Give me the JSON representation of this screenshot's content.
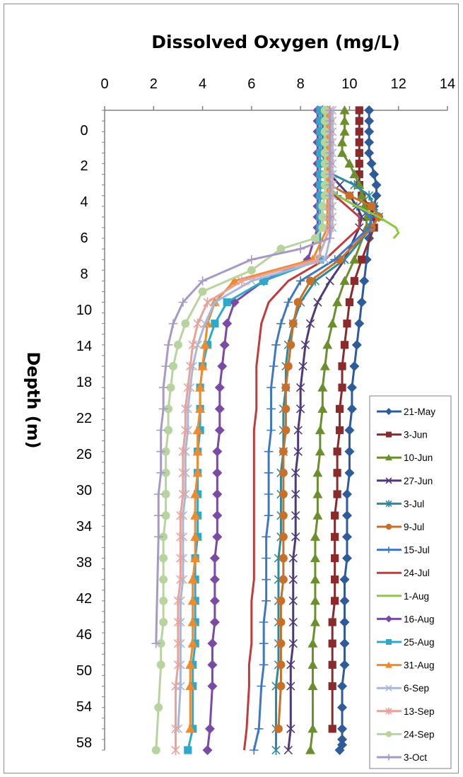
{
  "chart_data": {
    "type": "line",
    "title": "",
    "xlabel": "Dissolved Oxygen (mg/L)",
    "ylabel": "Depth (m)",
    "xlim": [
      0,
      14
    ],
    "ylim": [
      60,
      0
    ],
    "x_axis_position": "top",
    "x_ticks": [
      0,
      2,
      4,
      6,
      8,
      10,
      12,
      14
    ],
    "y_ticks": [
      0,
      2,
      4,
      6,
      8,
      10,
      14,
      18,
      22,
      26,
      30,
      34,
      38,
      42,
      46,
      50,
      54,
      58
    ],
    "grid": false,
    "legend_position": "bottom-right",
    "series": [
      {
        "name": "21-May",
        "color": "#2e5b9a",
        "marker": "diamond",
        "x": [
          10.8,
          10.8,
          10.8,
          10.8,
          10.8,
          10.9,
          11.0,
          11.1,
          11.1,
          11.0,
          10.9,
          10.8,
          10.7,
          10.6,
          10.5,
          10.4,
          10.3,
          10.2,
          10.1,
          10.1,
          10.0,
          10.0,
          10.0,
          9.9,
          9.9,
          9.9,
          9.9,
          9.8,
          9.8,
          9.8,
          9.8,
          9.8,
          9.7,
          9.7,
          9.7,
          9.7,
          9.7,
          9.6
        ],
        "depth": [
          0,
          1,
          2,
          3,
          4,
          5,
          6,
          7,
          8,
          9,
          10,
          12,
          14,
          16,
          18,
          20,
          22,
          24,
          26,
          28,
          30,
          32,
          34,
          36,
          38,
          40,
          42,
          44,
          46,
          48,
          50,
          52,
          54,
          56,
          58,
          59,
          59.5,
          60
        ]
      },
      {
        "name": "3-Jun",
        "color": "#8b2a2a",
        "marker": "square",
        "x": [
          10.4,
          10.4,
          10.4,
          10.4,
          10.4,
          10.4,
          10.4,
          10.4,
          10.5,
          10.8,
          11.0,
          11.0,
          10.5,
          10.2,
          10.0,
          9.9,
          9.8,
          9.7,
          9.7,
          9.6,
          9.6,
          9.5,
          9.5,
          9.5,
          9.4,
          9.4,
          9.4,
          9.4,
          9.4,
          9.3,
          9.3,
          9.3,
          9.3,
          9.3
        ],
        "depth": [
          0,
          1,
          2,
          3,
          4,
          5,
          6,
          7,
          8,
          9,
          10,
          11,
          14,
          16,
          18,
          20,
          22,
          24,
          26,
          28,
          30,
          32,
          34,
          36,
          38,
          40,
          42,
          44,
          46,
          48,
          50,
          52,
          54,
          58
        ]
      },
      {
        "name": "10-Jun",
        "color": "#6a8f2c",
        "marker": "triangle",
        "x": [
          9.8,
          9.8,
          9.8,
          9.7,
          9.7,
          10.0,
          10.2,
          10.4,
          10.5,
          10.6,
          10.7,
          10.7,
          10.2,
          9.8,
          9.5,
          9.3,
          9.1,
          9.0,
          8.9,
          8.9,
          8.8,
          8.8,
          8.7,
          8.7,
          8.7,
          8.6,
          8.6,
          8.6,
          8.6,
          8.6,
          8.5,
          8.5,
          8.5,
          8.5,
          8.4
        ],
        "depth": [
          0,
          1,
          2,
          3,
          4,
          5,
          6,
          7,
          8,
          9,
          10,
          11,
          14,
          16,
          18,
          20,
          22,
          24,
          26,
          28,
          30,
          32,
          34,
          36,
          38,
          40,
          42,
          44,
          46,
          48,
          50,
          52,
          54,
          58,
          60
        ]
      },
      {
        "name": "27-Jun",
        "color": "#4e3a78",
        "marker": "x",
        "x": [
          9.2,
          9.2,
          9.2,
          9.2,
          9.2,
          9.2,
          9.2,
          9.6,
          10.0,
          10.3,
          10.5,
          10.4,
          9.8,
          9.2,
          8.7,
          8.4,
          8.2,
          8.1,
          8.0,
          8.0,
          7.9,
          7.9,
          7.8,
          7.8,
          7.8,
          7.8,
          7.7,
          7.7,
          7.7,
          7.7,
          7.7,
          7.6,
          7.6,
          7.6,
          7.5
        ],
        "depth": [
          0,
          1,
          2,
          3,
          4,
          5,
          6,
          7,
          8,
          9,
          10,
          11,
          14,
          16,
          18,
          20,
          22,
          24,
          26,
          28,
          30,
          32,
          34,
          36,
          38,
          40,
          42,
          44,
          46,
          48,
          50,
          52,
          54,
          58,
          60
        ]
      },
      {
        "name": "3-Jul",
        "color": "#2d8a9e",
        "marker": "star",
        "x": [
          8.9,
          8.9,
          8.9,
          8.9,
          8.9,
          9.0,
          9.3,
          10.2,
          10.8,
          11.0,
          11.2,
          10.9,
          9.8,
          8.6,
          8.0,
          7.7,
          7.5,
          7.4,
          7.4,
          7.3,
          7.3,
          7.3,
          7.2,
          7.2,
          7.2,
          7.2,
          7.1,
          7.1,
          7.1,
          7.1,
          7.1,
          7.1,
          7.0,
          7.0,
          7.0
        ],
        "depth": [
          0,
          1,
          2,
          3,
          4,
          5,
          6,
          7,
          8,
          9,
          10,
          11,
          14,
          16,
          18,
          20,
          22,
          24,
          26,
          28,
          30,
          32,
          34,
          36,
          38,
          40,
          42,
          44,
          46,
          48,
          50,
          52,
          54,
          58,
          60
        ]
      },
      {
        "name": "9-Jul",
        "color": "#c8702a",
        "marker": "circle",
        "x": [
          9.1,
          9.1,
          9.1,
          9.1,
          9.1,
          9.1,
          9.1,
          9.2,
          10.0,
          10.9,
          11.2,
          10.9,
          9.6,
          8.4,
          7.9,
          7.7,
          7.6,
          7.5,
          7.4,
          7.4,
          7.4,
          7.3,
          7.3,
          7.3,
          7.3,
          7.3,
          7.3,
          7.3,
          7.2,
          7.2,
          7.2,
          7.2,
          7.2,
          7.1
        ],
        "depth": [
          0,
          1,
          2,
          3,
          4,
          5,
          6,
          7,
          8,
          9,
          10,
          11,
          14,
          16,
          18,
          20,
          22,
          24,
          26,
          28,
          30,
          32,
          34,
          36,
          38,
          40,
          42,
          44,
          46,
          48,
          50,
          52,
          54,
          58
        ]
      },
      {
        "name": "15-Jul",
        "color": "#3f78c2",
        "marker": "plus",
        "x": [
          9.0,
          9.0,
          9.0,
          9.0,
          9.0,
          9.0,
          9.0,
          9.1,
          9.5,
          10.3,
          10.9,
          10.8,
          9.4,
          8.0,
          7.5,
          7.2,
          7.0,
          6.9,
          6.8,
          6.8,
          6.8,
          6.7,
          6.7,
          6.7,
          6.7,
          6.6,
          6.6,
          6.6,
          6.6,
          6.5,
          6.5,
          6.5,
          6.4,
          6.3,
          6.1
        ],
        "depth": [
          0,
          1,
          2,
          3,
          4,
          5,
          6,
          7,
          8,
          9,
          10,
          11,
          14,
          16,
          18,
          20,
          22,
          24,
          26,
          28,
          30,
          32,
          34,
          36,
          38,
          40,
          42,
          44,
          46,
          48,
          50,
          52,
          54,
          58,
          60
        ]
      },
      {
        "name": "24-Jul",
        "color": "#c23b3b",
        "marker": "none",
        "x": [
          9.0,
          9.0,
          9.0,
          9.0,
          9.0,
          9.0,
          9.0,
          9.1,
          9.4,
          9.9,
          10.4,
          10.4,
          9.0,
          7.5,
          6.7,
          6.4,
          6.3,
          6.2,
          6.2,
          6.2,
          6.1,
          6.1,
          6.1,
          6.1,
          6.1,
          6.1,
          6.1,
          6.1,
          6.0,
          6.0,
          6.0,
          5.9,
          5.9,
          5.8,
          5.7
        ],
        "depth": [
          0,
          1,
          2,
          3,
          4,
          5,
          6,
          7,
          8,
          9,
          10,
          11,
          14,
          16,
          18,
          20,
          22,
          24,
          26,
          28,
          30,
          32,
          34,
          36,
          38,
          40,
          42,
          44,
          46,
          48,
          50,
          52,
          54,
          58,
          60
        ]
      },
      {
        "name": "1-Aug",
        "color": "#8ec83f",
        "marker": "none",
        "x": [
          9.0,
          9.0,
          9.0,
          9.0,
          9.0,
          9.0,
          9.0,
          9.1,
          9.5,
          10.3,
          11.2,
          11.9,
          12.0,
          11.8
        ],
        "depth": [
          0,
          1,
          2,
          3,
          4,
          5,
          6,
          7,
          8,
          9,
          10,
          11,
          11.5,
          12
        ]
      },
      {
        "name": "16-Aug",
        "color": "#7a4aa5",
        "marker": "diamond",
        "x": [
          8.7,
          8.7,
          8.7,
          8.7,
          8.7,
          8.7,
          8.7,
          8.7,
          8.7,
          8.7,
          8.7,
          8.7,
          8.3,
          6.5,
          5.3,
          5.0,
          4.9,
          4.8,
          4.7,
          4.7,
          4.7,
          4.6,
          4.6,
          4.6,
          4.6,
          4.6,
          4.5,
          4.5,
          4.5,
          4.5,
          4.4,
          4.4,
          4.4,
          4.3,
          4.2
        ],
        "depth": [
          0,
          1,
          2,
          3,
          4,
          5,
          6,
          7,
          8,
          9,
          10,
          11,
          14,
          16,
          18,
          20,
          22,
          24,
          26,
          28,
          30,
          32,
          34,
          36,
          38,
          40,
          42,
          44,
          46,
          48,
          50,
          52,
          54,
          58,
          60
        ]
      },
      {
        "name": "25-Aug",
        "color": "#30a8c8",
        "marker": "square",
        "x": [
          8.8,
          8.8,
          8.8,
          8.8,
          8.8,
          8.8,
          8.8,
          8.8,
          8.8,
          8.8,
          8.8,
          8.8,
          8.8,
          6.5,
          5.0,
          4.5,
          4.2,
          4.0,
          3.9,
          3.9,
          3.9,
          3.8,
          3.8,
          3.8,
          3.8,
          3.8,
          3.7,
          3.7,
          3.7,
          3.7,
          3.7,
          3.6,
          3.6,
          3.6,
          3.4
        ],
        "depth": [
          0,
          1,
          2,
          3,
          4,
          5,
          6,
          7,
          8,
          9,
          10,
          11,
          14,
          16,
          18,
          20,
          22,
          24,
          26,
          28,
          30,
          32,
          34,
          36,
          38,
          40,
          42,
          44,
          46,
          48,
          50,
          52,
          54,
          58,
          60
        ]
      },
      {
        "name": "31-Aug",
        "color": "#f08a2a",
        "marker": "triangle",
        "x": [
          9.1,
          9.1,
          9.1,
          9.1,
          9.1,
          9.1,
          9.1,
          9.1,
          9.1,
          9.1,
          9.1,
          9.1,
          8.5,
          5.3,
          4.5,
          4.2,
          4.1,
          4.0,
          3.9,
          3.9,
          3.8,
          3.8,
          3.8,
          3.7,
          3.7,
          3.7,
          3.7,
          3.6,
          3.6,
          3.6,
          3.6,
          3.5,
          3.5,
          3.5
        ],
        "depth": [
          0,
          1,
          2,
          3,
          4,
          5,
          6,
          7,
          8,
          9,
          10,
          11,
          14,
          16,
          18,
          20,
          22,
          24,
          26,
          28,
          30,
          32,
          34,
          36,
          38,
          40,
          42,
          44,
          46,
          48,
          50,
          52,
          54,
          58
        ]
      },
      {
        "name": "6-Sep",
        "color": "#a5b8da",
        "marker": "x",
        "x": [
          9.3,
          9.3,
          9.3,
          9.3,
          9.3,
          9.3,
          9.3,
          9.3,
          9.3,
          9.3,
          9.3,
          9.3,
          9.0,
          6.0,
          4.5,
          4.1,
          3.8,
          3.6,
          3.5,
          3.4,
          3.4,
          3.3,
          3.3,
          3.3,
          3.2,
          3.2,
          3.2,
          3.2,
          3.1,
          3.1,
          3.1,
          3.1,
          3.1,
          3.0
        ],
        "depth": [
          0,
          1,
          2,
          3,
          4,
          5,
          6,
          7,
          8,
          9,
          10,
          11,
          14,
          16,
          18,
          20,
          22,
          24,
          26,
          28,
          30,
          32,
          34,
          36,
          38,
          40,
          42,
          44,
          46,
          48,
          50,
          52,
          54,
          58
        ]
      },
      {
        "name": "13-Sep",
        "color": "#e8a29a",
        "marker": "star",
        "x": [
          9.2,
          9.2,
          9.2,
          9.2,
          9.2,
          9.2,
          9.2,
          9.2,
          9.2,
          9.2,
          9.2,
          9.2,
          8.7,
          5.6,
          4.2,
          3.8,
          3.6,
          3.5,
          3.4,
          3.3,
          3.3,
          3.2,
          3.2,
          3.2,
          3.1,
          3.1,
          3.1,
          3.1,
          3.0,
          3.0,
          3.0,
          3.0,
          2.9,
          2.9,
          2.9
        ],
        "depth": [
          0,
          1,
          2,
          3,
          4,
          5,
          6,
          7,
          8,
          9,
          10,
          11,
          14,
          16,
          18,
          20,
          22,
          24,
          26,
          28,
          30,
          32,
          34,
          36,
          38,
          40,
          42,
          44,
          46,
          48,
          50,
          52,
          54,
          58,
          60
        ]
      },
      {
        "name": "24-Sep",
        "color": "#b8d49e",
        "marker": "circle",
        "x": [
          9.0,
          9.0,
          9.0,
          9.0,
          9.0,
          9.0,
          9.0,
          9.0,
          9.0,
          8.9,
          8.9,
          8.9,
          8.6,
          7.2,
          6.0,
          4.0,
          3.3,
          3.0,
          2.8,
          2.7,
          2.6,
          2.6,
          2.5,
          2.5,
          2.5,
          2.5,
          2.4,
          2.4,
          2.4,
          2.4,
          2.4,
          2.3,
          2.3,
          2.2,
          2.1
        ],
        "depth": [
          0,
          1,
          2,
          3,
          4,
          5,
          6,
          7,
          8,
          9,
          10,
          11,
          12,
          13,
          15,
          17,
          20,
          22,
          24,
          26,
          28,
          30,
          32,
          34,
          36,
          38,
          40,
          42,
          44,
          46,
          48,
          50,
          52,
          56,
          60
        ]
      },
      {
        "name": "3-Oct",
        "color": "#a699c8",
        "marker": "plus",
        "x": [
          9.2,
          9.2,
          9.2,
          9.2,
          9.2,
          9.2,
          9.2,
          9.2,
          9.2,
          9.2,
          9.2,
          9.2,
          9.2,
          8.0,
          6.0,
          4.0,
          3.2,
          2.8,
          2.6,
          2.5,
          2.4,
          2.4,
          2.3,
          2.3,
          2.3,
          2.2,
          2.2,
          2.2,
          2.1
        ],
        "depth": [
          0,
          1,
          2,
          3,
          4,
          5,
          6,
          7,
          8,
          9,
          10,
          11,
          12,
          13,
          14,
          16,
          18,
          20,
          22,
          24,
          26,
          28,
          30,
          32,
          34,
          36,
          38,
          40,
          50
        ]
      }
    ]
  }
}
